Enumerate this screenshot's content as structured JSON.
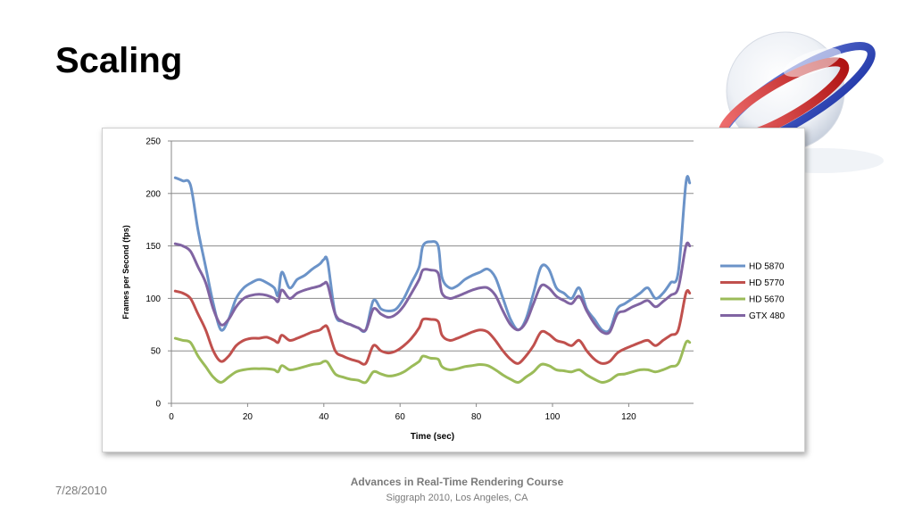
{
  "slide": {
    "title": "Scaling"
  },
  "footer": {
    "date": "7/28/2010",
    "course": "Advances in Real-Time Rendering Course",
    "venue": "Siggraph 2010, Los Angeles, CA"
  },
  "chart_data": {
    "type": "line",
    "title": "",
    "xlabel": "Time (sec)",
    "ylabel": "Frames per Second (fps)",
    "xlim": [
      0,
      137
    ],
    "ylim": [
      0,
      250
    ],
    "xticks": [
      0,
      20,
      40,
      60,
      80,
      100,
      120
    ],
    "yticks": [
      0,
      50,
      100,
      150,
      200,
      250
    ],
    "grid": true,
    "legend_position": "right",
    "x": [
      1,
      3,
      5,
      7,
      9,
      11,
      13,
      15,
      17,
      19,
      21,
      23,
      25,
      27,
      28,
      29,
      31,
      33,
      35,
      37,
      39,
      40,
      41,
      43,
      45,
      47,
      49,
      51,
      53,
      55,
      57,
      59,
      61,
      63,
      65,
      66,
      68,
      70,
      71,
      73,
      75,
      77,
      79,
      81,
      83,
      85,
      87,
      89,
      91,
      93,
      95,
      97,
      99,
      101,
      103,
      105,
      107,
      109,
      111,
      113,
      115,
      117,
      119,
      121,
      123,
      125,
      127,
      129,
      131,
      133,
      135,
      136
    ],
    "series": [
      {
        "name": "HD 5870",
        "color": "#6b93c8",
        "values": [
          215,
          212,
          208,
          165,
          130,
          95,
          70,
          80,
          100,
          110,
          115,
          118,
          115,
          110,
          103,
          125,
          110,
          118,
          122,
          128,
          133,
          137,
          135,
          85,
          78,
          75,
          72,
          70,
          98,
          90,
          88,
          90,
          100,
          115,
          130,
          150,
          154,
          150,
          120,
          110,
          112,
          118,
          122,
          125,
          128,
          120,
          100,
          80,
          70,
          80,
          105,
          130,
          128,
          110,
          105,
          100,
          110,
          90,
          80,
          70,
          70,
          90,
          95,
          100,
          105,
          110,
          100,
          105,
          115,
          125,
          210,
          210
        ]
      },
      {
        "name": "HD 5770",
        "color": "#c0504d",
        "values": [
          107,
          105,
          100,
          85,
          70,
          50,
          40,
          45,
          55,
          60,
          62,
          62,
          63,
          60,
          58,
          65,
          60,
          62,
          65,
          68,
          70,
          73,
          72,
          50,
          45,
          42,
          40,
          38,
          55,
          50,
          48,
          50,
          55,
          62,
          72,
          80,
          80,
          78,
          65,
          60,
          62,
          65,
          68,
          70,
          68,
          60,
          50,
          42,
          38,
          45,
          55,
          68,
          66,
          60,
          58,
          55,
          60,
          50,
          42,
          38,
          40,
          48,
          52,
          55,
          58,
          60,
          55,
          60,
          65,
          70,
          105,
          105
        ]
      },
      {
        "name": "HD 5670",
        "color": "#9bbb59",
        "values": [
          62,
          60,
          58,
          45,
          35,
          25,
          20,
          25,
          30,
          32,
          33,
          33,
          33,
          32,
          30,
          36,
          32,
          33,
          35,
          37,
          38,
          40,
          39,
          28,
          25,
          23,
          22,
          20,
          30,
          28,
          26,
          27,
          30,
          35,
          40,
          45,
          43,
          42,
          35,
          32,
          33,
          35,
          36,
          37,
          36,
          32,
          27,
          23,
          20,
          25,
          30,
          37,
          36,
          32,
          31,
          30,
          32,
          27,
          23,
          20,
          22,
          27,
          28,
          30,
          32,
          32,
          30,
          32,
          35,
          38,
          58,
          58
        ]
      },
      {
        "name": "GTX 480",
        "color": "#8064a2",
        "values": [
          152,
          150,
          145,
          130,
          115,
          90,
          75,
          80,
          92,
          100,
          103,
          104,
          103,
          100,
          97,
          108,
          100,
          105,
          108,
          110,
          112,
          114,
          113,
          85,
          78,
          75,
          72,
          70,
          90,
          85,
          82,
          85,
          93,
          105,
          118,
          127,
          127,
          124,
          105,
          100,
          102,
          105,
          108,
          110,
          110,
          103,
          88,
          75,
          70,
          77,
          95,
          112,
          110,
          102,
          98,
          95,
          102,
          88,
          76,
          68,
          68,
          85,
          88,
          92,
          95,
          98,
          92,
          97,
          103,
          110,
          150,
          150
        ]
      }
    ]
  }
}
